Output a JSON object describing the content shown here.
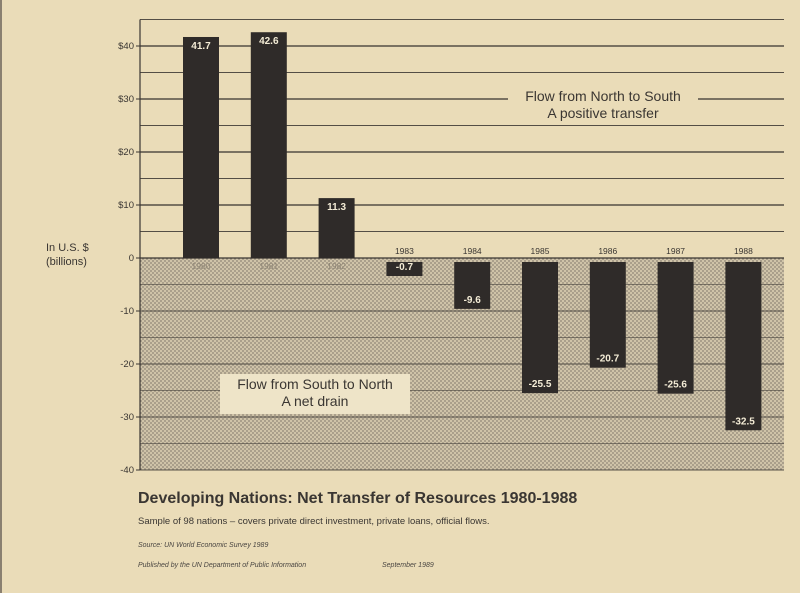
{
  "chart_data": {
    "type": "bar",
    "title": "Developing Nations: Net Transfer of Resources  1980-1988",
    "subtitle": "Sample of 98 nations – covers private direct investment, private loans, official flows.",
    "ylabel": "In U.S. $ (billions)",
    "categories": [
      "1980",
      "1981",
      "1982",
      "1983",
      "1984",
      "1985",
      "1986",
      "1987",
      "1988"
    ],
    "values": [
      41.7,
      42.6,
      11.3,
      -0.7,
      -9.6,
      -25.5,
      -20.7,
      -25.6,
      -32.5
    ],
    "value_labels": [
      "41.7",
      "42.6",
      "11.3",
      "-0.7",
      "-9.6",
      "-25.5",
      "-20.7",
      "-25.6",
      "-32.5"
    ],
    "ylim": [
      -40,
      45
    ],
    "yticks": [
      40,
      30,
      20,
      10,
      0,
      -10,
      -20,
      -30,
      -40
    ],
    "ytick_labels": [
      "$40",
      "$30",
      "$20",
      "$10",
      "0",
      "-10",
      "-20",
      "-30",
      "-40"
    ],
    "grid": true,
    "annotations": {
      "positive_line1": "Flow from North to South",
      "positive_line2": "A positive transfer",
      "negative_line1": "Flow from South to North",
      "negative_line2": "A net drain"
    }
  },
  "source": "Source: UN World Economic Survey 1989",
  "published": "Published by the UN Department of Public Information",
  "published_date": "September 1989",
  "colors": {
    "paper": "#eadcb8",
    "bar": "#2f2b29",
    "bar_label": "#f4ecd6",
    "grid": "#3a3632",
    "negative_fill": "#b8ad98"
  }
}
